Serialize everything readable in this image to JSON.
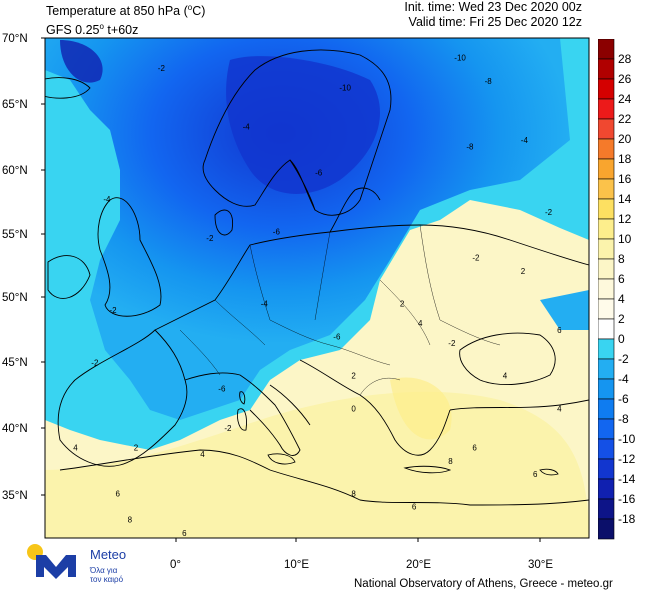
{
  "header": {
    "title_main": "Temperature at 850 hPa (",
    "title_unit": "C)",
    "title_deg": "o",
    "model_prefix": "GFS 0.25",
    "model_deg": "o",
    "model_suffix": " t+60z",
    "init_time": "Init. time: Wed 23 Dec 2020 00z",
    "valid_time": "Valid time: Fri 25 Dec 2020 12z"
  },
  "axes": {
    "lat_labels": [
      "70°N",
      "65°N",
      "60°N",
      "55°N",
      "50°N",
      "45°N",
      "40°N",
      "35°N"
    ],
    "lon_labels": [
      "0°",
      "10°E",
      "20°E",
      "30°E"
    ]
  },
  "colorbar": {
    "levels": [
      "28",
      "26",
      "24",
      "22",
      "20",
      "18",
      "16",
      "14",
      "12",
      "10",
      "8",
      "6",
      "4",
      "2",
      "0",
      "-2",
      "-4",
      "-6",
      "-8",
      "-10",
      "-12",
      "-14",
      "-16",
      "-18"
    ],
    "colors": [
      "#8b0000",
      "#b00000",
      "#d40000",
      "#ec1a1a",
      "#f04830",
      "#f57a2a",
      "#f9a52e",
      "#fbc24a",
      "#fde061",
      "#fdee8c",
      "#fbf3ac",
      "#fcf6c7",
      "#fef9dc",
      "#fffbea",
      "#ffffff",
      "#39d4f1",
      "#23aef2",
      "#1595f0",
      "#0f7cf0",
      "#1266f0",
      "#1450e6",
      "#1236cf",
      "#1020b0",
      "#0d1488",
      "#0b0f6a"
    ]
  },
  "contour_labels": [
    {
      "v": "-10",
      "lat": 68.3,
      "lon": 23.0
    },
    {
      "v": "-2",
      "lat": 67.5,
      "lon": -1.5
    },
    {
      "v": "-4",
      "lat": 63.0,
      "lon": 5.5
    },
    {
      "v": "-10",
      "lat": 66.0,
      "lon": 13.5
    },
    {
      "v": "-8",
      "lat": 66.5,
      "lon": 25.5
    },
    {
      "v": "-8",
      "lat": 61.5,
      "lon": 24.0
    },
    {
      "v": "-6",
      "lat": 59.5,
      "lon": 11.5
    },
    {
      "v": "-4",
      "lat": 62.0,
      "lon": 28.5
    },
    {
      "v": "-2",
      "lat": 56.5,
      "lon": 30.5
    },
    {
      "v": "-4",
      "lat": 57.5,
      "lon": -6.0
    },
    {
      "v": "-2",
      "lat": 54.5,
      "lon": 2.5
    },
    {
      "v": "-6",
      "lat": 55.0,
      "lon": 8.0
    },
    {
      "v": "-2",
      "lat": 49.0,
      "lon": -5.5
    },
    {
      "v": "-4",
      "lat": 49.5,
      "lon": 7.0
    },
    {
      "v": "-6",
      "lat": 47.0,
      "lon": 13.0
    },
    {
      "v": "-2",
      "lat": 46.5,
      "lon": 22.5
    },
    {
      "v": "-2",
      "lat": 53.0,
      "lon": 24.5
    },
    {
      "v": "-2",
      "lat": 45.0,
      "lon": -7.0
    },
    {
      "v": "-6",
      "lat": 43.0,
      "lon": 3.5
    },
    {
      "v": "-2",
      "lat": 40.0,
      "lon": 4.0
    },
    {
      "v": "0",
      "lat": 41.5,
      "lon": 14.5
    },
    {
      "v": "2",
      "lat": 52.0,
      "lon": 28.5
    },
    {
      "v": "2",
      "lat": 49.5,
      "lon": 18.5
    },
    {
      "v": "4",
      "lat": 48.0,
      "lon": 20.0
    },
    {
      "v": "4",
      "lat": 44.0,
      "lon": 27.0
    },
    {
      "v": "6",
      "lat": 47.5,
      "lon": 31.5
    },
    {
      "v": "4",
      "lat": 38.5,
      "lon": -8.5
    },
    {
      "v": "2",
      "lat": 38.5,
      "lon": -3.5
    },
    {
      "v": "4",
      "lat": 38.0,
      "lon": 2.0
    },
    {
      "v": "6",
      "lat": 35.0,
      "lon": -5.0
    },
    {
      "v": "8",
      "lat": 33.0,
      "lon": -4.0
    },
    {
      "v": "6",
      "lat": 32.0,
      "lon": 0.5
    },
    {
      "v": "6",
      "lat": 38.5,
      "lon": 24.5
    },
    {
      "v": "8",
      "lat": 35.0,
      "lon": 14.5
    },
    {
      "v": "6",
      "lat": 34.0,
      "lon": 19.5
    },
    {
      "v": "6",
      "lat": 36.5,
      "lon": 29.5
    },
    {
      "v": "8",
      "lat": 37.5,
      "lon": 22.5
    },
    {
      "v": "4",
      "lat": 41.5,
      "lon": 31.5
    },
    {
      "v": "2",
      "lat": 44.0,
      "lon": 14.5
    }
  ],
  "footer": "National Observatory of Athens, Greece - meteo.gr",
  "logo": {
    "name": "Meteo",
    "tagline_1": "Όλα για",
    "tagline_2": "τον καιρό"
  }
}
